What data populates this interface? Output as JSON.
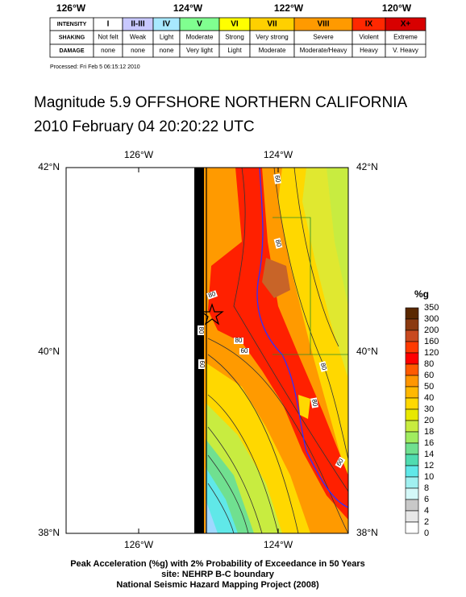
{
  "scale": {
    "longitudes": [
      "126°W",
      "124°W",
      "122°W",
      "120°W"
    ],
    "rows": [
      {
        "header": "INTENSITY",
        "cells": [
          "I",
          "II-III",
          "IV",
          "V",
          "VI",
          "VII",
          "VIII",
          "IX",
          "X+"
        ]
      },
      {
        "header": "SHAKING",
        "cells": [
          "Not felt",
          "Weak",
          "Light",
          "Moderate",
          "Strong",
          "Very strong",
          "Severe",
          "Violent",
          "Extreme"
        ]
      },
      {
        "header": "DAMAGE",
        "cells": [
          "none",
          "none",
          "none",
          "Very light",
          "Light",
          "Moderate",
          "Moderate/Heavy",
          "Heavy",
          "V. Heavy"
        ]
      }
    ],
    "colors": [
      "#ffffff",
      "#c8c8ff",
      "#a8e8ff",
      "#80ff90",
      "#ffff00",
      "#ffd000",
      "#ff9a00",
      "#ff2800",
      "#d80000"
    ],
    "processed": "Processed: Fri Feb  5 06:15:12 2010"
  },
  "title": [
    "Magnitude 5.9 OFFSHORE NORTHERN CALIFORNIA",
    "2010 February 04 20:20:22 UTC"
  ],
  "map": {
    "top_labels": [
      "126°W",
      "124°W"
    ],
    "bottom_labels": [
      "126°W",
      "124°W"
    ],
    "left_labels": [
      "42°N",
      "40°N",
      "38°N"
    ],
    "right_labels": [
      "42°N",
      "40°N",
      "38°N"
    ],
    "contour_labels": [
      "60",
      "80",
      "80",
      "80",
      "60",
      "80",
      "80",
      "60",
      "80",
      "60"
    ]
  },
  "legend": {
    "title": "%g",
    "labels": [
      "350",
      "300",
      "200",
      "160",
      "120",
      "80",
      "60",
      "50",
      "40",
      "30",
      "20",
      "18",
      "16",
      "14",
      "12",
      "10",
      "8",
      "6",
      "4",
      "2",
      "0"
    ],
    "colors": [
      "#5a2800",
      "#8b3a10",
      "#c84a20",
      "#ff3a00",
      "#ff0000",
      "#ff5a00",
      "#ff9600",
      "#ffb800",
      "#ffd800",
      "#e8e800",
      "#c8ec40",
      "#a0ec60",
      "#70e090",
      "#50dcb0",
      "#60e8e8",
      "#a0f0f0",
      "#d4f8f8",
      "#c8c8c8",
      "#e8e8e8",
      "#ffffff"
    ]
  },
  "caption": [
    "Peak Acceleration (%g) with 2% Probability of Exceedance in 50 Years",
    "site: NEHRP B-C boundary",
    "National Seismic Hazard Mapping Project (2008)"
  ]
}
